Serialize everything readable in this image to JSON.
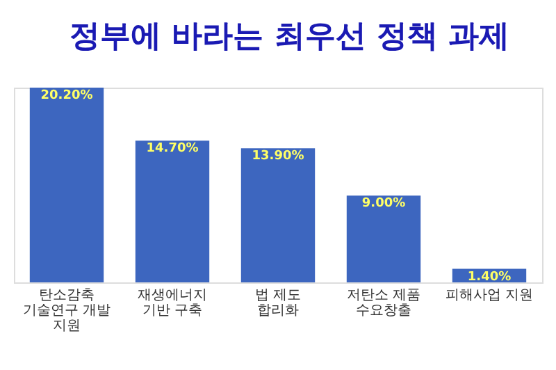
{
  "chart_data": {
    "type": "bar",
    "title": "정부에 바라는 최우선 정책 과제",
    "categories": [
      "탄소감축 기술연구 개발 지원",
      "재생에너지 기반 구축",
      "법 제도 합리화",
      "저탄소 제품 수요창출",
      "피해사업 지원"
    ],
    "values": [
      20.2,
      14.7,
      13.9,
      9.0,
      1.4
    ],
    "value_labels": [
      "20.20%",
      "14.70%",
      "13.90%",
      "9.00%",
      "1.40%"
    ],
    "color": "#3d66bf",
    "grid": false
  }
}
